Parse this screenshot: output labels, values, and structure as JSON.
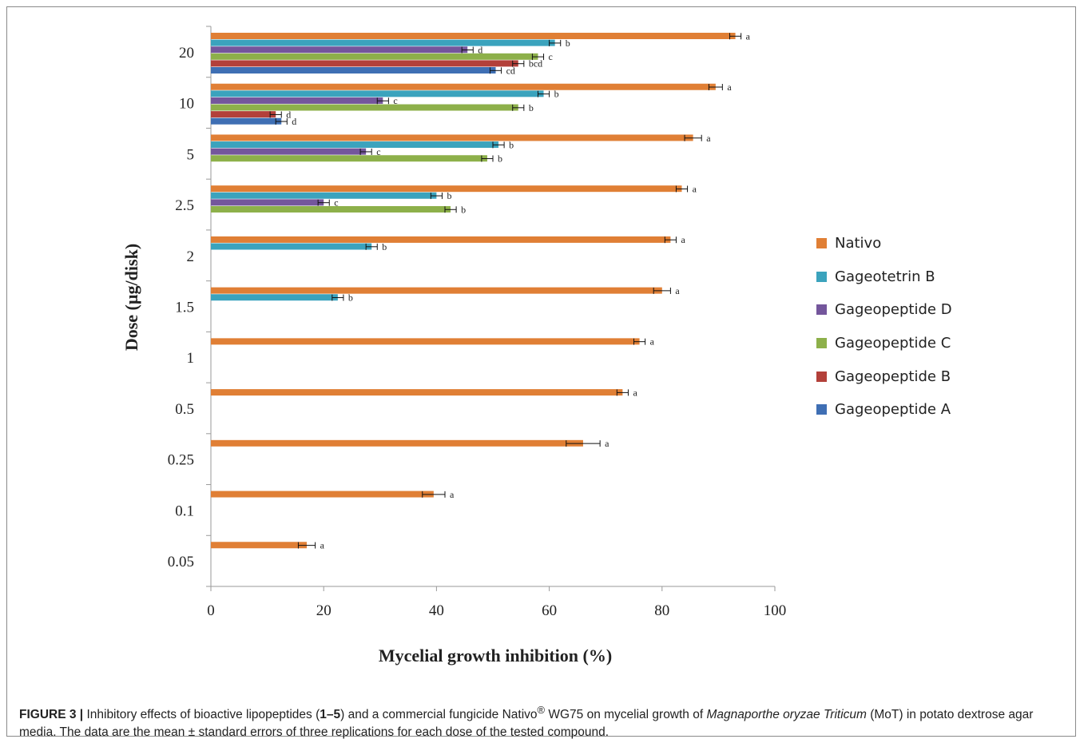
{
  "chart_data": {
    "type": "bar",
    "orientation": "horizontal",
    "xlabel": "Mycelial growth inhibition (%)",
    "ylabel": "Dose (µg/disk)",
    "xlim": [
      0,
      100
    ],
    "xticks": [
      "0",
      "20",
      "40",
      "60",
      "80",
      "100"
    ],
    "categories": [
      "20",
      "10",
      "5",
      "2.5",
      "2",
      "1.5",
      "1",
      "0.5",
      "0.25",
      "0.1",
      "0.05"
    ],
    "series": [
      {
        "name": "Nativo",
        "color": "#E07F35",
        "values": [
          93,
          89.5,
          85.5,
          83.5,
          81.5,
          80,
          76,
          73,
          66,
          39.5,
          17
        ],
        "errors": [
          1,
          1.2,
          1.5,
          1,
          1,
          1.5,
          1,
          1,
          3,
          2,
          1.5
        ],
        "letters": [
          "a",
          "a",
          "a",
          "a",
          "a",
          "a",
          "a",
          "a",
          "a",
          "a",
          "a"
        ]
      },
      {
        "name": "Gageotetrin B",
        "color": "#3BA3BD",
        "values": [
          61,
          59,
          51,
          40,
          28.5,
          22.5,
          null,
          null,
          null,
          null,
          null
        ],
        "errors": [
          1,
          1,
          1,
          1,
          1,
          1,
          null,
          null,
          null,
          null,
          null
        ],
        "letters": [
          "b",
          "b",
          "b",
          "b",
          "b",
          "b",
          "",
          "",
          "",
          "",
          ""
        ]
      },
      {
        "name": "Gageopeptide D",
        "color": "#74569C",
        "values": [
          45.5,
          30.5,
          27.5,
          20,
          null,
          null,
          null,
          null,
          null,
          null,
          null
        ],
        "errors": [
          1,
          1,
          1,
          1,
          null,
          null,
          null,
          null,
          null,
          null,
          null
        ],
        "letters": [
          "d",
          "c",
          "c",
          "c",
          "",
          "",
          "",
          "",
          "",
          "",
          ""
        ]
      },
      {
        "name": "Gageopeptide C",
        "color": "#8DB04A",
        "values": [
          58,
          54.5,
          49,
          42.5,
          null,
          null,
          null,
          null,
          null,
          null,
          null
        ],
        "errors": [
          1,
          1,
          1,
          1,
          null,
          null,
          null,
          null,
          null,
          null,
          null
        ],
        "letters": [
          "c",
          "b",
          "b",
          "b",
          "",
          "",
          "",
          "",
          "",
          "",
          ""
        ]
      },
      {
        "name": "Gageopeptide B",
        "color": "#B3403A",
        "values": [
          54.5,
          11.5,
          null,
          null,
          null,
          null,
          null,
          null,
          null,
          null,
          null
        ],
        "errors": [
          1,
          1,
          null,
          null,
          null,
          null,
          null,
          null,
          null,
          null,
          null
        ],
        "letters": [
          "bcd",
          "d",
          "",
          "",
          "",
          "",
          "",
          "",
          "",
          "",
          ""
        ]
      },
      {
        "name": "Gageopeptide A",
        "color": "#3F6FB4",
        "values": [
          50.5,
          12.5,
          null,
          null,
          null,
          null,
          null,
          null,
          null,
          null,
          null
        ],
        "errors": [
          1,
          1,
          null,
          null,
          null,
          null,
          null,
          null,
          null,
          null,
          null
        ],
        "letters": [
          "cd",
          "d",
          "",
          "",
          "",
          "",
          "",
          "",
          "",
          "",
          ""
        ]
      }
    ],
    "legend_order": [
      "Nativo",
      "Gageotetrin B",
      "Gageopeptide D",
      "Gageopeptide C",
      "Gageopeptide B",
      "Gageopeptide A"
    ],
    "legend_position": "right",
    "grid": false
  },
  "caption": {
    "label": "FIGURE 3 |",
    "text_1": " Inhibitory effects of bioactive lipopeptides (",
    "compounds": "1–5",
    "text_2": ") and a commercial fungicide Nativo",
    "reg": "®",
    "text_3": " WG75 on mycelial growth of ",
    "species": "Magnaporthe oryzae Triticum",
    "text_4": " (MoT) in potato dextrose agar media. The data are the mean ± standard errors of three replications for each dose of the tested compound."
  }
}
